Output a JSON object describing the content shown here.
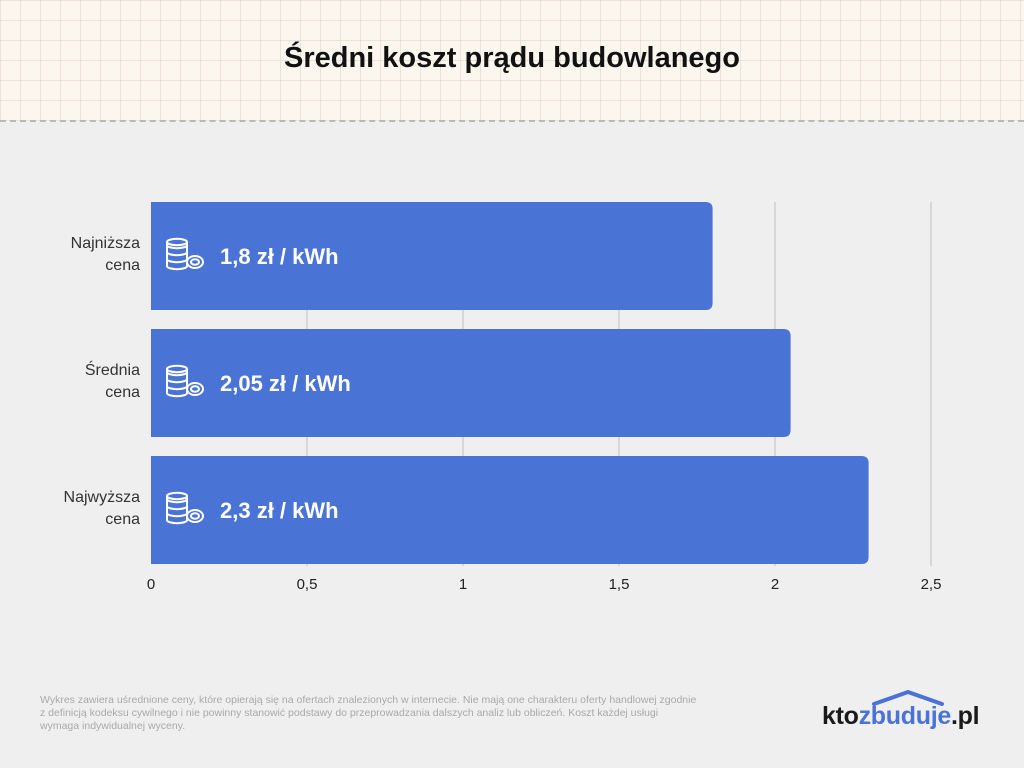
{
  "title": "Średni koszt prądu budowlanego",
  "chart_data": {
    "type": "bar",
    "orientation": "horizontal",
    "categories": [
      [
        "Najniższa",
        "cena"
      ],
      [
        "Średnia",
        "cena"
      ],
      [
        "Najwyższa",
        "cena"
      ]
    ],
    "values": [
      1.8,
      2.05,
      2.3
    ],
    "data_labels": [
      "1,8 zł / kWh",
      "2,05 zł / kWh",
      "2,3 zł / kWh"
    ],
    "xlim": [
      0,
      2.5
    ],
    "x_ticks": [
      0,
      0.5,
      1,
      1.5,
      2,
      2.5
    ],
    "x_tick_labels": [
      "0",
      "0,5",
      "1",
      "1,5",
      "2",
      "2,5"
    ],
    "grid": "vertical",
    "bar_color": "#4a73d6",
    "bar_icon": "coins-icon"
  },
  "footnote": "Wykres zawiera uśrednione ceny, które opierają się na ofertach znalezionych w internecie. Nie mają one charakteru oferty handlowej zgodnie z definicją kodeksu cywilnego i nie powinny stanowić podstawy do przeprowadzania dalszych analiz lub obliczeń. Koszt każdej usługi wymaga indywidualnej wyceny.",
  "logo": {
    "part1": "kto",
    "part2": "zbuduje",
    "part3": ".pl",
    "accent_color": "#4a73d6"
  }
}
